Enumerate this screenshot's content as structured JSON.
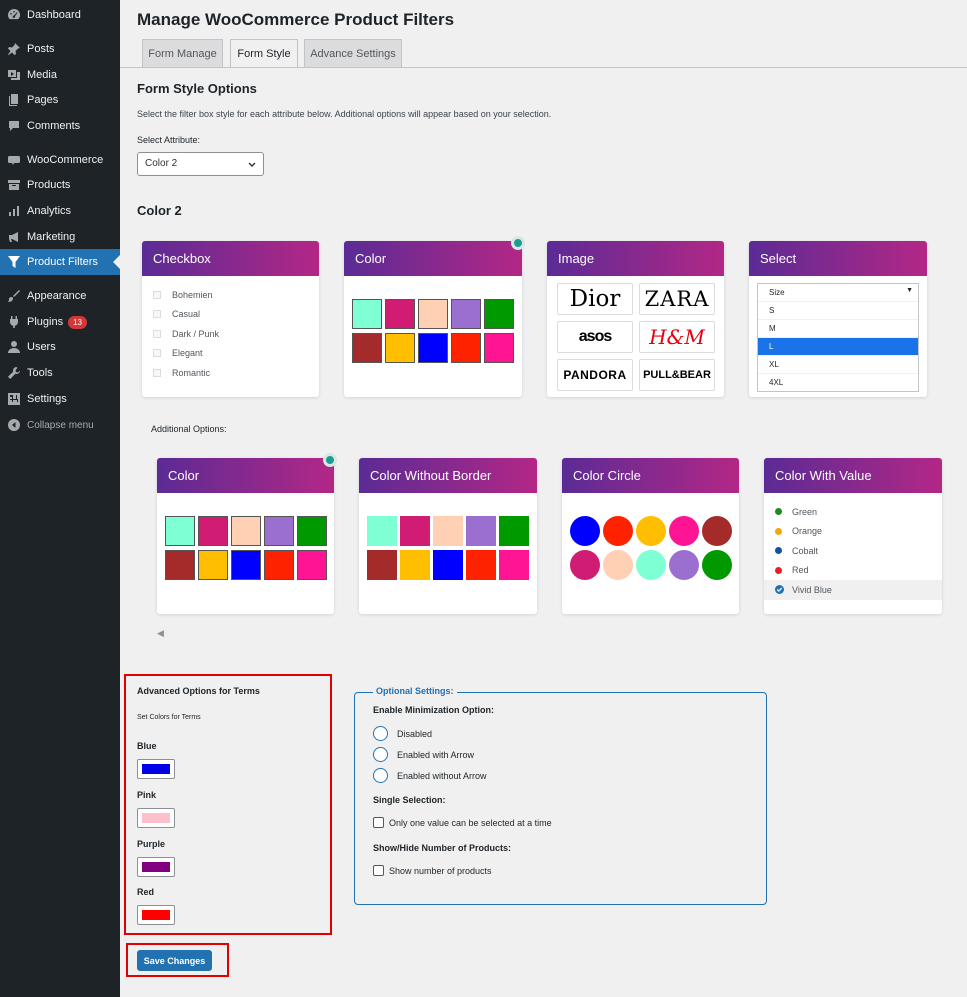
{
  "sidebar": {
    "items": [
      {
        "label": "Dashboard",
        "icon": "dashboard-icon"
      },
      {
        "label": "Posts",
        "icon": "pin-icon"
      },
      {
        "label": "Media",
        "icon": "media-icon"
      },
      {
        "label": "Pages",
        "icon": "pages-icon"
      },
      {
        "label": "Comments",
        "icon": "comment-icon"
      },
      {
        "label": "WooCommerce",
        "icon": "woo-icon"
      },
      {
        "label": "Products",
        "icon": "archive-icon"
      },
      {
        "label": "Analytics",
        "icon": "bar-chart-icon"
      },
      {
        "label": "Marketing",
        "icon": "megaphone-icon"
      },
      {
        "label": "Product Filters",
        "icon": "filter-icon"
      },
      {
        "label": "Appearance",
        "icon": "brush-icon"
      },
      {
        "label": "Plugins",
        "icon": "plug-icon",
        "badge": "13"
      },
      {
        "label": "Users",
        "icon": "user-icon"
      },
      {
        "label": "Tools",
        "icon": "wrench-icon"
      },
      {
        "label": "Settings",
        "icon": "settings-icon"
      },
      {
        "label": "Collapse menu",
        "icon": "collapse-icon"
      }
    ]
  },
  "page": {
    "title": "Manage WooCommerce Product Filters",
    "tabs": [
      "Form Manage",
      "Form Style",
      "Advance Settings"
    ],
    "active_tab": "Form Style",
    "section_title": "Form Style Options",
    "description": "Select the filter box style for each attribute below. Additional options will appear based on your selection.",
    "select_attribute_label": "Select Attribute:",
    "select_attribute_value": "Color 2",
    "attribute_title": "Color 2",
    "additional_options_label": "Additional Options:"
  },
  "styles": {
    "checkbox": {
      "title": "Checkbox",
      "items": [
        "Bohemien",
        "Casual",
        "Dark / Punk",
        "Elegant",
        "Romantic"
      ]
    },
    "color": {
      "title": "Color"
    },
    "image": {
      "title": "Image",
      "logos": [
        "Dior",
        "ZARA",
        "asos",
        "H&M",
        "PANDORA",
        "PULL&BEAR"
      ]
    },
    "select": {
      "title": "Select",
      "header": "Size",
      "options": [
        "S",
        "M",
        "L",
        "XL",
        "4XL"
      ],
      "selected": "L"
    }
  },
  "additional": {
    "color": {
      "title": "Color"
    },
    "color_without_border": {
      "title": "Color Without Border"
    },
    "color_circle": {
      "title": "Color Circle"
    },
    "color_with_value": {
      "title": "Color With Value",
      "items": [
        {
          "label": "Green",
          "color": "#1a8f1a"
        },
        {
          "label": "Orange",
          "color": "#f5a50b"
        },
        {
          "label": "Cobalt",
          "color": "#1450a3"
        },
        {
          "label": "Red",
          "color": "#e32222"
        },
        {
          "label": "Vivid Blue",
          "color": "#2271b1"
        }
      ]
    }
  },
  "swatch_colors": [
    "#7fffd4",
    "#d01c72",
    "#ffd0b3",
    "#9b6fd0",
    "#009900",
    "#a52a2a",
    "#ffbf00",
    "#0000ff",
    "#ff2200",
    "#ff1493"
  ],
  "circle_colors": [
    "#0000ff",
    "#ff2200",
    "#ffbf00",
    "#ff1493",
    "#a52a2a",
    "#d01c72",
    "#ffd0b3",
    "#7fffd4",
    "#9b6fd0",
    "#009900"
  ],
  "advanced": {
    "title": "Advanced Options for Terms",
    "subtitle": "Set Colors for Terms",
    "terms": [
      {
        "label": "Blue",
        "color": "#0000e6"
      },
      {
        "label": "Pink",
        "color": "#ffc0cb"
      },
      {
        "label": "Purple",
        "color": "#800080"
      },
      {
        "label": "Red",
        "color": "#ff0000"
      }
    ]
  },
  "optional": {
    "legend": "Optional Settings:",
    "minimization_label": "Enable Minimization Option:",
    "minimization_options": [
      "Disabled",
      "Enabled with Arrow",
      "Enabled without Arrow"
    ],
    "single_selection_label": "Single Selection:",
    "single_selection_option": "Only one value can be selected at a time",
    "show_hide_label": "Show/Hide Number of Products:",
    "show_hide_option": "Show number of products"
  },
  "save_label": "Save Changes"
}
